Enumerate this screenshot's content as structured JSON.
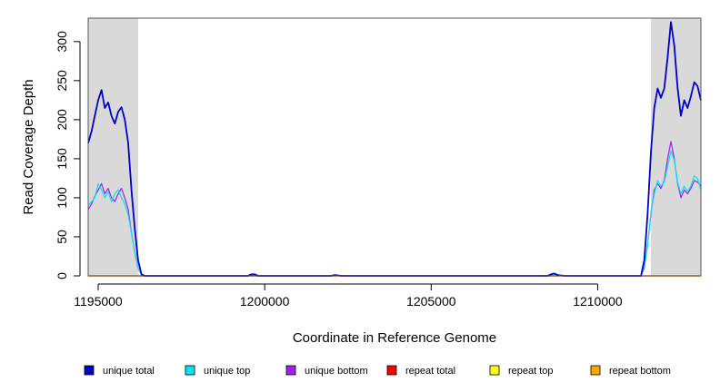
{
  "chart_data": {
    "type": "line",
    "title": "",
    "xlabel": "Coordinate in Reference Genome",
    "ylabel": "Read Coverage Depth",
    "xlim": [
      1194700,
      1213100
    ],
    "ylim": [
      0,
      330
    ],
    "x_ticks": [
      1195000,
      1200000,
      1205000,
      1210000
    ],
    "x_tick_labels": [
      "1195000",
      "1200000",
      "1205000",
      "1210000"
    ],
    "y_ticks": [
      0,
      50,
      100,
      150,
      200,
      250,
      300
    ],
    "y_tick_labels": [
      "0",
      "50",
      "100",
      "150",
      "200",
      "250",
      "300"
    ],
    "shaded_regions": [
      {
        "x_start": 1194700,
        "x_end": 1196200,
        "color": "#d9d9d9"
      },
      {
        "x_start": 1211600,
        "x_end": 1213100,
        "color": "#d9d9d9"
      }
    ],
    "legend_position": "bottom",
    "series": [
      {
        "name": "unique total",
        "color": "#0000cd",
        "x": [
          1194700,
          1194800,
          1194900,
          1195000,
          1195100,
          1195200,
          1195300,
          1195400,
          1195500,
          1195600,
          1195700,
          1195800,
          1195900,
          1196000,
          1196100,
          1196200,
          1196300,
          1196400,
          1196500,
          1199500,
          1199600,
          1199700,
          1199800,
          1202000,
          1202100,
          1202300,
          1208500,
          1208600,
          1208700,
          1208800,
          1209000,
          1211300,
          1211400,
          1211500,
          1211600,
          1211700,
          1211800,
          1211900,
          1212000,
          1212100,
          1212200,
          1212300,
          1212400,
          1212500,
          1212600,
          1212700,
          1212800,
          1212900,
          1213000,
          1213100
        ],
        "values": [
          170,
          185,
          205,
          225,
          238,
          215,
          222,
          205,
          195,
          210,
          216,
          200,
          170,
          110,
          60,
          20,
          2,
          0,
          0,
          0,
          2,
          2,
          0,
          0,
          1,
          0,
          0,
          2,
          3,
          1,
          0,
          0,
          20,
          80,
          160,
          215,
          240,
          228,
          240,
          280,
          325,
          295,
          240,
          205,
          225,
          215,
          230,
          248,
          243,
          225
        ]
      },
      {
        "name": "unique top",
        "color": "#00e5ee",
        "x": [
          1194700,
          1194800,
          1194900,
          1195000,
          1195100,
          1195200,
          1195300,
          1195400,
          1195500,
          1195600,
          1195700,
          1195800,
          1195900,
          1196000,
          1196100,
          1196200,
          1196300,
          1196400,
          1196500,
          1199500,
          1199600,
          1199700,
          1199800,
          1202000,
          1202100,
          1202300,
          1208500,
          1208600,
          1208700,
          1208800,
          1209000,
          1211300,
          1211400,
          1211500,
          1211600,
          1211700,
          1211800,
          1211900,
          1212000,
          1212100,
          1212200,
          1212300,
          1212400,
          1212500,
          1212600,
          1212700,
          1212800,
          1212900,
          1213000,
          1213100
        ],
        "values": [
          90,
          95,
          100,
          118,
          110,
          100,
          108,
          95,
          105,
          110,
          100,
          92,
          78,
          55,
          30,
          10,
          1,
          0,
          0,
          0,
          1,
          1,
          0,
          0,
          1,
          0,
          0,
          1,
          2,
          1,
          0,
          0,
          12,
          40,
          82,
          105,
          122,
          115,
          120,
          140,
          160,
          148,
          120,
          105,
          115,
          108,
          115,
          128,
          125,
          110
        ]
      },
      {
        "name": "unique bottom",
        "color": "#a020f0",
        "x": [
          1194700,
          1194800,
          1194900,
          1195000,
          1195100,
          1195200,
          1195300,
          1195400,
          1195500,
          1195600,
          1195700,
          1195800,
          1195900,
          1196000,
          1196100,
          1196200,
          1196300,
          1196400,
          1196500,
          1199500,
          1199600,
          1199700,
          1199800,
          1202000,
          1202100,
          1202300,
          1208500,
          1208600,
          1208700,
          1208800,
          1209000,
          1211300,
          1211400,
          1211500,
          1211600,
          1211700,
          1211800,
          1211900,
          1212000,
          1212100,
          1212200,
          1212300,
          1212400,
          1212500,
          1212600,
          1212700,
          1212800,
          1212900,
          1213000,
          1213100
        ],
        "values": [
          85,
          92,
          102,
          110,
          118,
          105,
          112,
          100,
          95,
          105,
          112,
          100,
          85,
          55,
          30,
          10,
          1,
          0,
          0,
          0,
          1,
          1,
          0,
          0,
          1,
          0,
          0,
          1,
          2,
          1,
          0,
          0,
          10,
          40,
          80,
          110,
          118,
          112,
          122,
          150,
          172,
          150,
          118,
          100,
          110,
          105,
          112,
          122,
          120,
          115
        ]
      },
      {
        "name": "repeat total",
        "color": "#ff0000",
        "x": [
          1194700,
          1213100
        ],
        "values": [
          0,
          0
        ]
      },
      {
        "name": "repeat top",
        "color": "#ffff00",
        "x": [
          1194700,
          1213100
        ],
        "values": [
          0,
          0
        ]
      },
      {
        "name": "repeat bottom",
        "color": "#ffa500",
        "x": [
          1194700,
          1213100
        ],
        "values": [
          0,
          0
        ]
      }
    ]
  }
}
